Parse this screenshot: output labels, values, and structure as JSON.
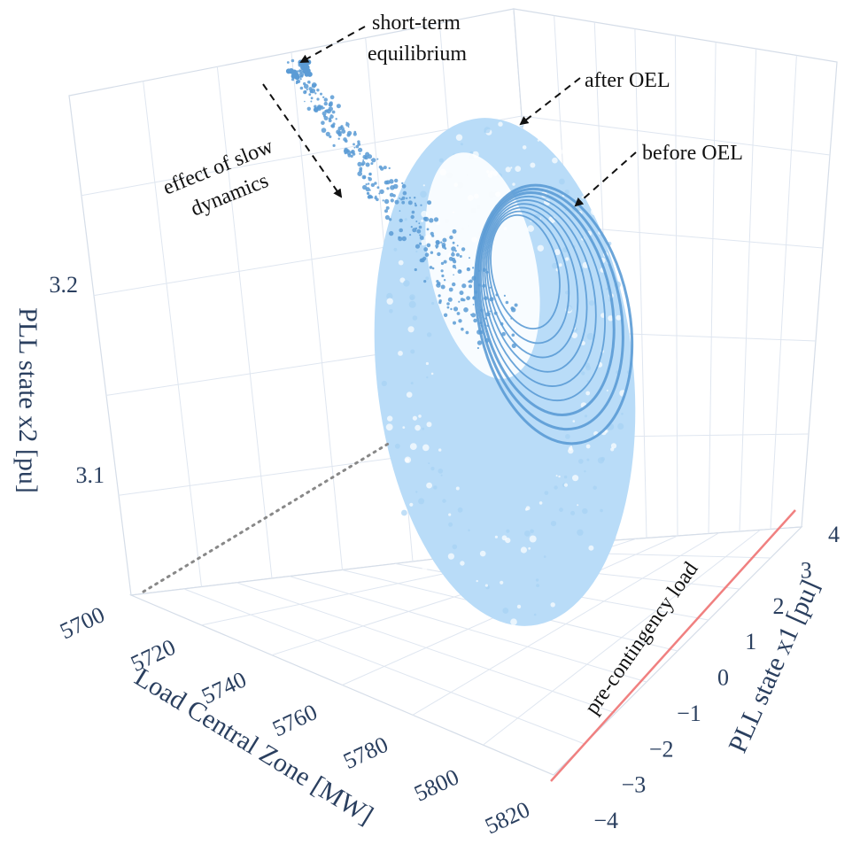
{
  "chart_data": {
    "type": "scatter3d",
    "axes": {
      "x": {
        "label": "Load Central Zone [MW]",
        "range": [
          5700,
          5820
        ],
        "ticks": [
          "5700",
          "5720",
          "5740",
          "5760",
          "5780",
          "5800",
          "5820"
        ]
      },
      "y": {
        "label": "PLL state x1 [pu]",
        "range": [
          -4,
          4
        ],
        "ticks": [
          "−4",
          "−3",
          "−2",
          "−1",
          "0",
          "1",
          "2",
          "3",
          "4"
        ]
      },
      "z": {
        "label": "PLL state x2 [pu]",
        "range": [
          3.02,
          3.28
        ],
        "ticks": [
          "3.1",
          "3.2"
        ]
      }
    },
    "grid": true,
    "colors": {
      "after_oel": "#b9dcf8",
      "before_oel": "#5b9bd5",
      "pre_contingency_line": "#f08080",
      "initial_path": "#888888",
      "grid": "#dfe6f0",
      "axis_text": "#2a3f5f"
    },
    "series": [
      {
        "x": [
          5815,
          5760,
          5700
        ],
        "y": [
          0,
          0,
          0
        ],
        "z": [
          3.065,
          3.065,
          3.065
        ]
      },
      {
        "x": [
          5742,
          5748,
          5755,
          5762,
          5770,
          5782
        ],
        "y": [
          -3.0,
          -1.8,
          -0.6,
          0.6,
          1.6,
          2.2
        ],
        "z": [
          3.235,
          3.22,
          3.2,
          3.17,
          3.15,
          3.12
        ]
      },
      {
        "x": [
          5770,
          5780,
          5795,
          5805,
          5810
        ],
        "y": [
          -3.5,
          -2.0,
          0.0,
          2.0,
          3.5
        ],
        "z": [
          3.18,
          3.09,
          3.04,
          3.08,
          3.16
        ]
      },
      {
        "x": [
          5780,
          5790,
          5800,
          5810,
          5815
        ],
        "y": [
          -1.5,
          0.0,
          1.5,
          3.0,
          3.8
        ],
        "z": [
          3.21,
          3.15,
          3.12,
          3.17,
          3.21
        ]
      },
      {
        "x": [
          5815,
          5815
        ],
        "y": [
          -4,
          4
        ],
        "z": [
          3.02,
          3.02
        ]
      }
    ],
    "annotations": [
      {
        "text_lines": [
          "short-term",
          "equilibrium"
        ]
      },
      {
        "text_lines": [
          "after OEL"
        ]
      },
      {
        "text_lines": [
          "before OEL"
        ]
      },
      {
        "text_lines": [
          "effect of slow",
          "dynamics"
        ]
      },
      {
        "text_lines": [
          "pre-contingency load"
        ]
      }
    ]
  }
}
